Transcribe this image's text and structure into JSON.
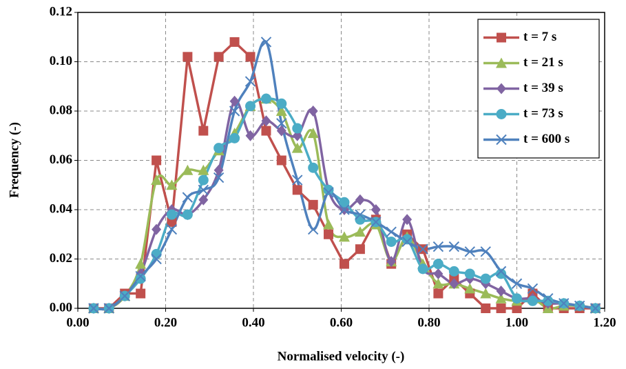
{
  "chart_data": {
    "type": "line",
    "x_label": "Normalised velocity (-)",
    "y_label": "Frequency (-)",
    "x": [
      0.036,
      0.071,
      0.107,
      0.143,
      0.179,
      0.214,
      0.25,
      0.286,
      0.321,
      0.357,
      0.393,
      0.429,
      0.464,
      0.5,
      0.536,
      0.571,
      0.607,
      0.643,
      0.679,
      0.714,
      0.75,
      0.786,
      0.821,
      0.857,
      0.893,
      0.929,
      0.964,
      1.0,
      1.036,
      1.071,
      1.107,
      1.143,
      1.179
    ],
    "series": [
      {
        "name": "t = 7 s",
        "color": "#c0504d",
        "marker": "square",
        "smooth": false,
        "values": [
          0,
          0,
          0.006,
          0.006,
          0.06,
          0.035,
          0.102,
          0.072,
          0.102,
          0.108,
          0.102,
          0.072,
          0.06,
          0.048,
          0.042,
          0.03,
          0.018,
          0.024,
          0.036,
          0.018,
          0.03,
          0.024,
          0.006,
          0.012,
          0.006,
          0,
          0,
          0,
          0.006,
          0,
          0,
          0,
          0
        ]
      },
      {
        "name": "t = 21 s",
        "color": "#9bbb59",
        "marker": "triangle",
        "smooth": true,
        "values": [
          0,
          0,
          0.005,
          0.018,
          0.052,
          0.05,
          0.056,
          0.056,
          0.064,
          0.071,
          0.082,
          0.085,
          0.08,
          0.065,
          0.071,
          0.034,
          0.029,
          0.031,
          0.034,
          0.019,
          0.029,
          0.018,
          0.01,
          0.01,
          0.008,
          0.006,
          0.004,
          0.003,
          0.004,
          0,
          0.001,
          0.001,
          0
        ]
      },
      {
        "name": "t = 39 s",
        "color": "#8064a2",
        "marker": "diamond",
        "smooth": true,
        "values": [
          0,
          0,
          0.005,
          0.014,
          0.032,
          0.04,
          0.038,
          0.044,
          0.056,
          0.084,
          0.07,
          0.076,
          0.072,
          0.07,
          0.08,
          0.048,
          0.04,
          0.044,
          0.04,
          0.019,
          0.036,
          0.016,
          0.014,
          0.01,
          0.012,
          0.01,
          0.007,
          0.004,
          0.004,
          0.002,
          0.002,
          0.001,
          0
        ]
      },
      {
        "name": "t = 73 s",
        "color": "#4bacc6",
        "marker": "circle",
        "smooth": true,
        "values": [
          0,
          0,
          0.005,
          0.012,
          0.022,
          0.038,
          0.038,
          0.052,
          0.065,
          0.069,
          0.082,
          0.085,
          0.083,
          0.073,
          0.057,
          0.048,
          0.043,
          0.036,
          0.035,
          0.027,
          0.028,
          0.016,
          0.018,
          0.015,
          0.014,
          0.012,
          0.014,
          0.004,
          0.003,
          0.003,
          0.002,
          0.001,
          0
        ]
      },
      {
        "name": "t = 600 s",
        "color": "#4f81bd",
        "marker": "x",
        "smooth": true,
        "values": [
          0,
          0,
          0.005,
          0.013,
          0.02,
          0.032,
          0.045,
          0.048,
          0.053,
          0.08,
          0.092,
          0.108,
          0.075,
          0.052,
          0.032,
          0.047,
          0.04,
          0.038,
          0.035,
          0.031,
          0.027,
          0.024,
          0.025,
          0.025,
          0.023,
          0.023,
          0.015,
          0.01,
          0.008,
          0.004,
          0.002,
          0.001,
          0
        ]
      }
    ],
    "xlim": [
      0,
      1.2
    ],
    "ylim": [
      0,
      0.12
    ],
    "xticks": [
      {
        "value": 0,
        "label": "0.00"
      },
      {
        "value": 0.2,
        "label": "0.20"
      },
      {
        "value": 0.4,
        "label": "0.40"
      },
      {
        "value": 0.6,
        "label": "0.60"
      },
      {
        "value": 0.8,
        "label": "0.80"
      },
      {
        "value": 1.0,
        "label": "1.00"
      },
      {
        "value": 1.2,
        "label": "1.20"
      }
    ],
    "yticks": [
      {
        "value": 0,
        "label": "0.00"
      },
      {
        "value": 0.02,
        "label": "0.02"
      },
      {
        "value": 0.04,
        "label": "0.04"
      },
      {
        "value": 0.06,
        "label": "0.06"
      },
      {
        "value": 0.08,
        "label": "0.08"
      },
      {
        "value": 0.1,
        "label": "0.10"
      },
      {
        "value": 0.12,
        "label": "0.12"
      }
    ],
    "grid": true,
    "legend": "upper-right"
  }
}
